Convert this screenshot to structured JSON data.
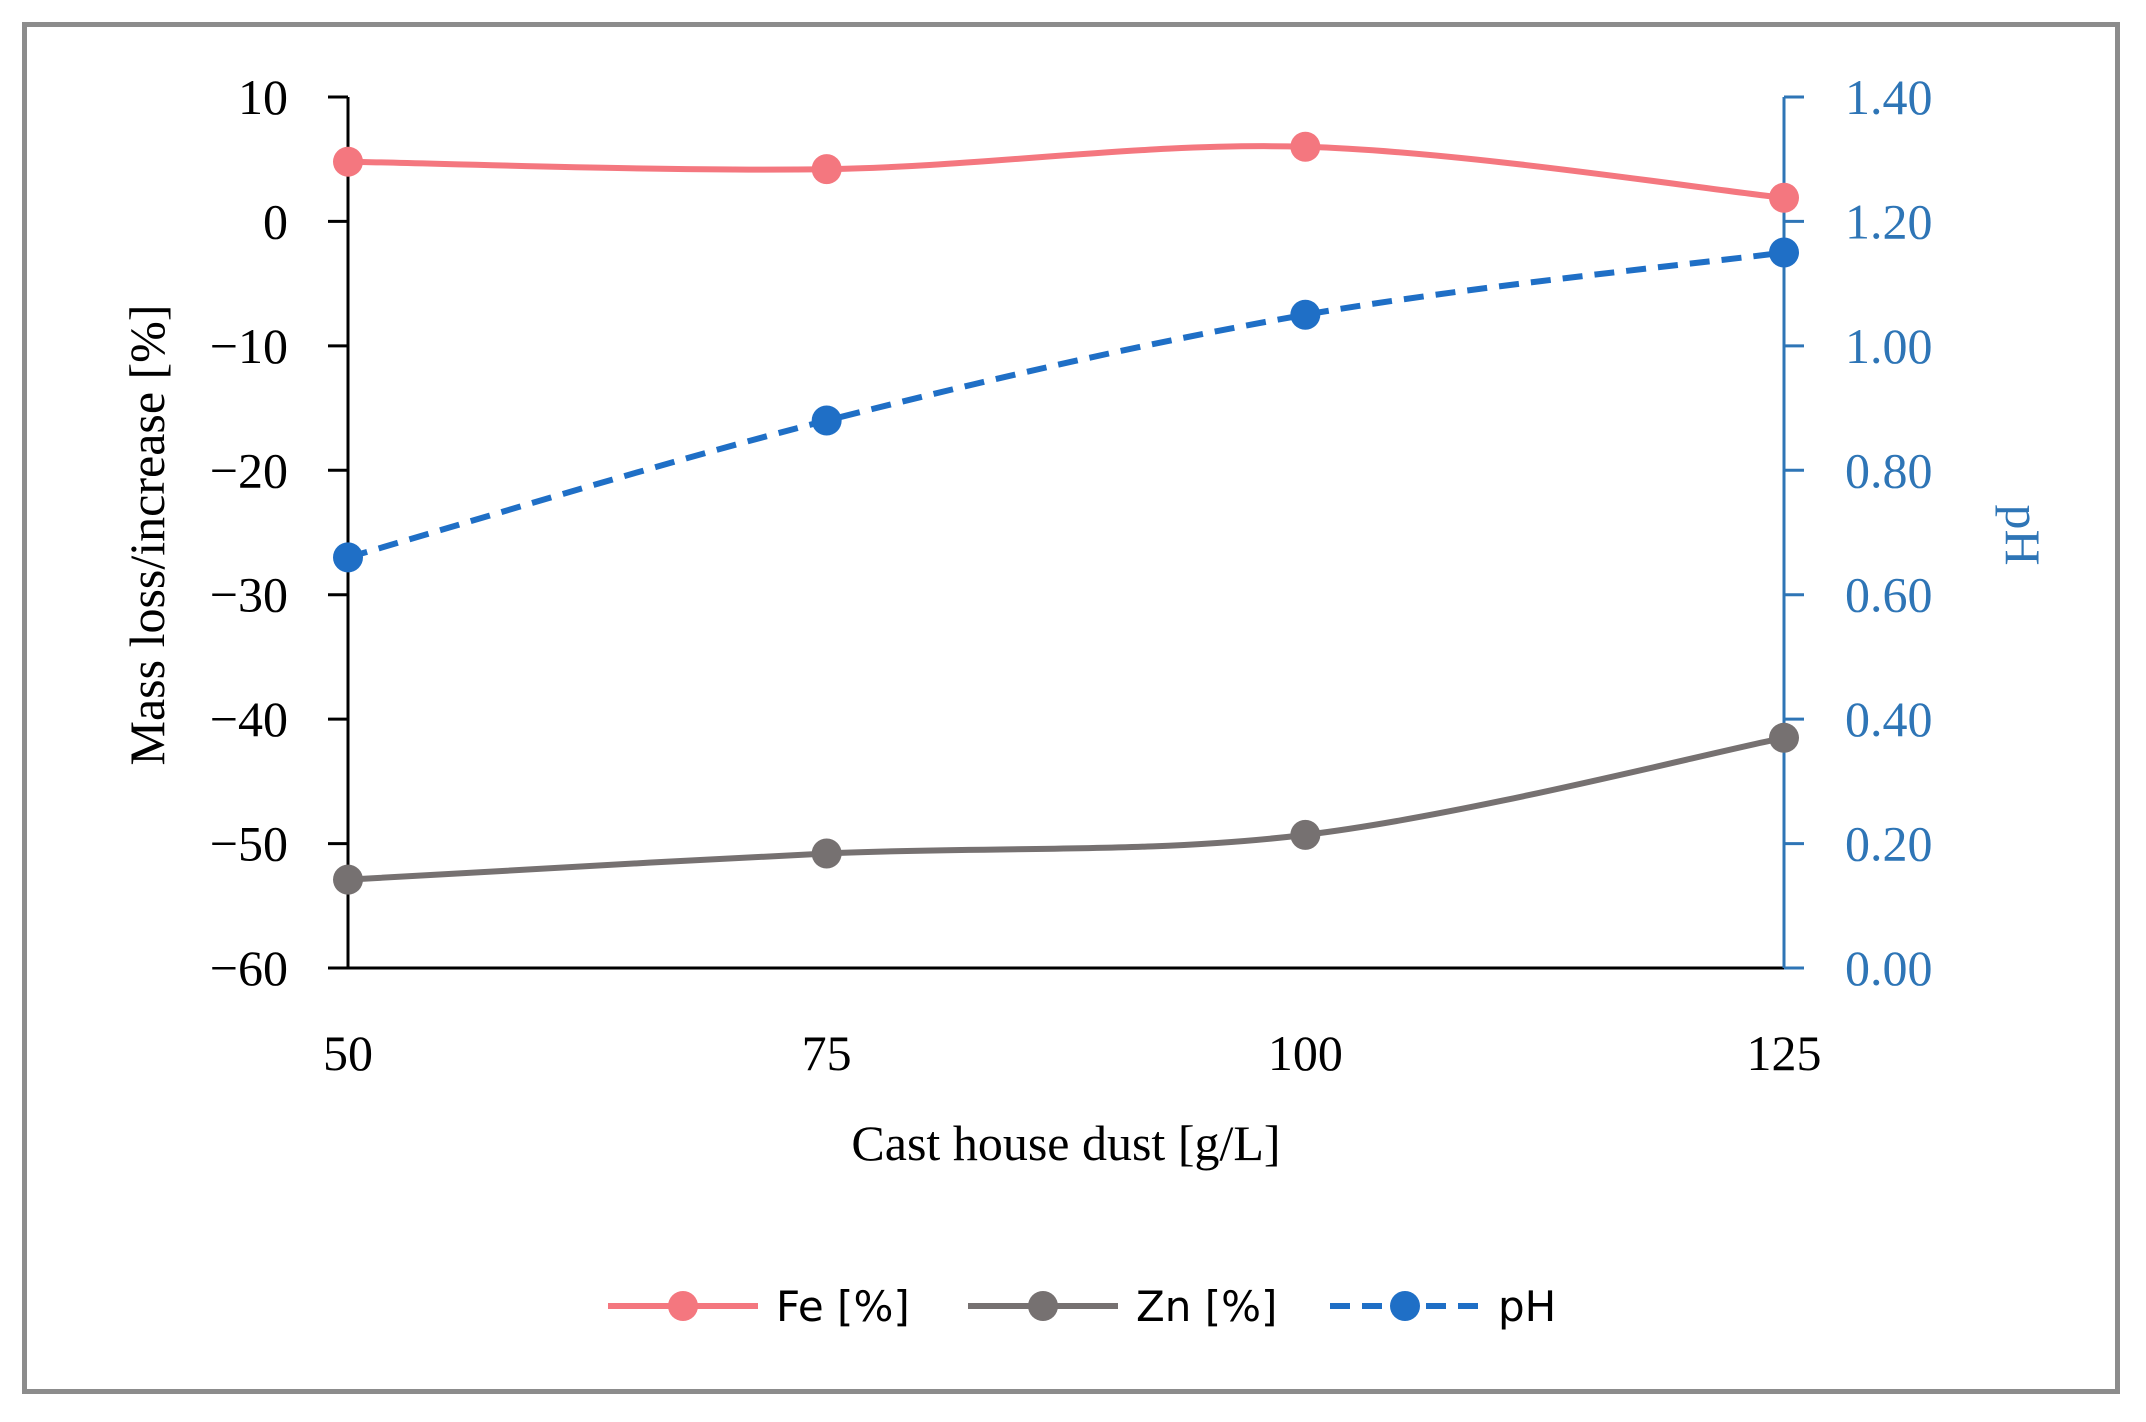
{
  "chart_data": {
    "type": "line",
    "title": "",
    "xlabel": "Cast house dust [g/L]",
    "ylabel": "Mass loss/increase [%]",
    "y2label": "pH",
    "categories": [
      50,
      75,
      100,
      125
    ],
    "x_tick_labels": [
      "50",
      "75",
      "100",
      "125"
    ],
    "ylim": [
      -60,
      10
    ],
    "y_ticks": [
      10,
      0,
      -10,
      -20,
      -30,
      -40,
      -50,
      -60
    ],
    "y_tick_labels": [
      "10",
      "0",
      "−10",
      "−20",
      "−30",
      "−40",
      "−50",
      "−60"
    ],
    "y2lim": [
      0,
      1.4
    ],
    "y2_ticks": [
      1.4,
      1.2,
      1.0,
      0.8,
      0.6,
      0.4,
      0.2,
      0.0
    ],
    "y2_tick_labels": [
      "1.40",
      "1.20",
      "1.00",
      "0.80",
      "0.60",
      "0.40",
      "0.20",
      "0.00"
    ],
    "series": [
      {
        "name": "Fe [%]",
        "axis": "left",
        "values": [
          4.8,
          4.2,
          6.0,
          1.9
        ],
        "color": "#f4777f",
        "dashed": false
      },
      {
        "name": "Zn [%]",
        "axis": "left",
        "values": [
          -52.9,
          -50.8,
          -49.3,
          -41.5
        ],
        "color": "#767171",
        "dashed": false
      },
      {
        "name": "pH",
        "axis": "right",
        "values": [
          0.66,
          0.88,
          1.05,
          1.15
        ],
        "color": "#1f6fc6",
        "dashed": true
      }
    ],
    "y2_axis_color": "#2e75b6",
    "legend_position": "bottom-center",
    "grid": false
  }
}
